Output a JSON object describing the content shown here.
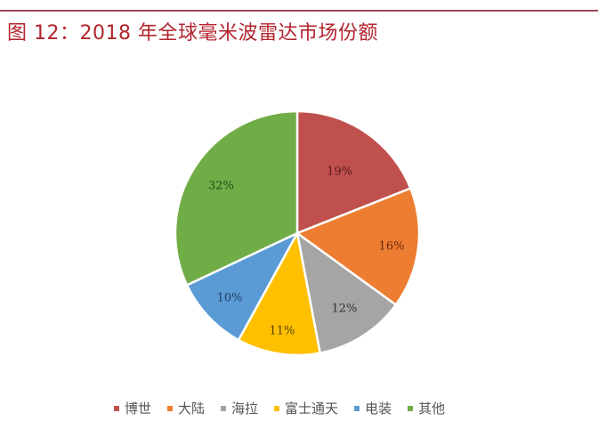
{
  "title": "图 12：2018 年全球毫米波雷达市场份额",
  "chart_data": {
    "type": "pie",
    "title": "图 12：2018 年全球毫米波雷达市场份额",
    "categories": [
      "博世",
      "大陆",
      "海拉",
      "富士通天",
      "电装",
      "其他"
    ],
    "values": [
      19,
      16,
      12,
      11,
      10,
      32
    ],
    "labels": [
      "19%",
      "16%",
      "12%",
      "11%",
      "10%",
      "32%"
    ],
    "colors": [
      "#c0504d",
      "#ed7d31",
      "#a5a5a5",
      "#ffc000",
      "#5b9bd5",
      "#70ad47"
    ],
    "start_angle": "12 o'clock",
    "direction": "clockwise",
    "legend_position": "bottom"
  },
  "legend": [
    {
      "label": "博世",
      "color": "#c0504d"
    },
    {
      "label": "大陆",
      "color": "#ed7d31"
    },
    {
      "label": "海拉",
      "color": "#a5a5a5"
    },
    {
      "label": "富士通天",
      "color": "#ffc000"
    },
    {
      "label": "电装",
      "color": "#5b9bd5"
    },
    {
      "label": "其他",
      "color": "#70ad47"
    }
  ]
}
